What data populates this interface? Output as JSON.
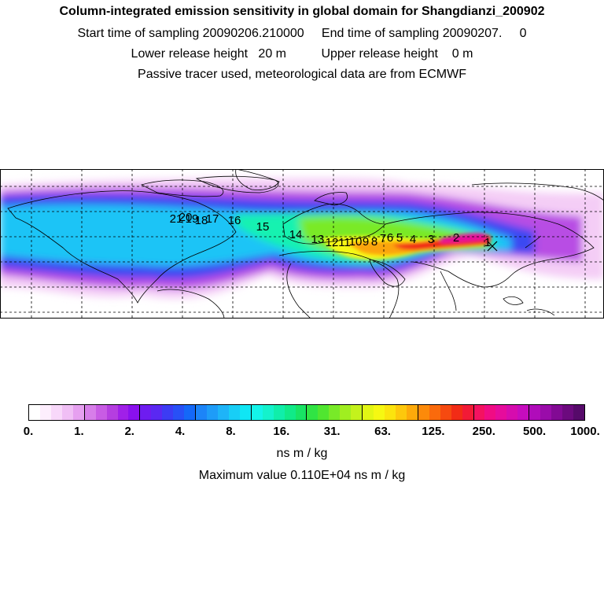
{
  "header": {
    "title": "Column-integrated emission sensitivity in global domain for Shangdianzi_200902",
    "sampling_line": "Start time of sampling 20090206.210000     End time of sampling 20090207.     0",
    "release_line": "Lower release height   20 m          Upper release height    0 m",
    "info_line": "Passive tracer used, meteorological data are from ECMWF"
  },
  "map": {
    "type": "heatmap",
    "trajectory_labels": [
      "1",
      "2",
      "3",
      "4",
      "5",
      "6",
      "7",
      "8",
      "9",
      "10",
      "11",
      "12",
      "13",
      "14",
      "15",
      "16",
      "17",
      "18",
      "19",
      "20",
      "21"
    ],
    "release_site_marker": "x"
  },
  "colorbar": {
    "tick_labels": [
      "0.",
      "1.",
      "2.",
      "4.",
      "8.",
      "16.",
      "31.",
      "63.",
      "125.",
      "250.",
      "500.",
      "1000."
    ],
    "colors": [
      "#ffffff",
      "#fdeefd",
      "#f8d8fa",
      "#f0bff5",
      "#e6a0f0",
      "#d77ee9",
      "#c85ce4",
      "#b53ee0",
      "#a020e8",
      "#8a10ee",
      "#6e1cf0",
      "#5a28f2",
      "#3c3cf4",
      "#2850f6",
      "#1468f8",
      "#1c84f8",
      "#1e9cf8",
      "#1eb4f8",
      "#18cef6",
      "#10e6f4",
      "#14f4ea",
      "#14f2cc",
      "#10eeaa",
      "#10ea88",
      "#18e464",
      "#30e444",
      "#50e630",
      "#78ea28",
      "#a0ee20",
      "#c4f21c",
      "#e2f614",
      "#f6f812",
      "#fbe40e",
      "#fdc80c",
      "#fdaa0a",
      "#fc8a0a",
      "#fa6a0c",
      "#f64a10",
      "#f22c16",
      "#f21a36",
      "#f41260",
      "#f00c84",
      "#e60c9c",
      "#d60cae",
      "#c60cbe",
      "#b00cba",
      "#9a0caa",
      "#820a94",
      "#6c0a7e",
      "#560a6a"
    ],
    "unit": "ns m / kg",
    "max_value_text": "Maximum value  0.110E+04 ns m / kg"
  }
}
